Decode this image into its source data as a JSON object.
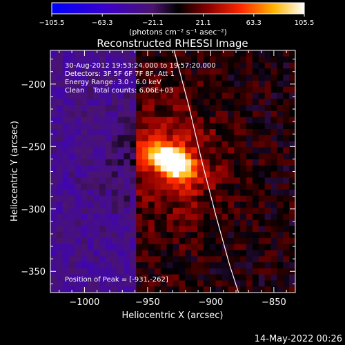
{
  "chart_data": {
    "type": "heatmap",
    "title": "Reconstructed RHESSI Image",
    "xlabel": "Heliocentric X (arcsec)",
    "ylabel": "Heliocentric Y (arcsec)",
    "xlim": [
      -1027,
      -833
    ],
    "ylim": [
      -367,
      -173
    ],
    "x_ticks": [
      -1000,
      -950,
      -900,
      -850
    ],
    "x_tick_labels": [
      "−1000",
      "−950",
      "−900",
      "−850"
    ],
    "y_ticks": [
      -200,
      -250,
      -300,
      -350
    ],
    "y_tick_labels": [
      "−200",
      "−250",
      "−300",
      "−350"
    ],
    "colorbar": {
      "min": -105.5,
      "max": 105.5,
      "ticks": [
        -105.5,
        -63.3,
        -21.1,
        21.1,
        63.3,
        105.5
      ],
      "tick_labels": [
        "−105.5",
        "−63.3",
        "−21.1",
        "21.1",
        "63.3",
        "105.5"
      ],
      "unit_label": "(photons cm⁻² s⁻¹ asec⁻²)"
    },
    "annotations": [
      "30-Aug-2012 19:53:24.000 to 19:57:20.000",
      "Detectors: 3F 5F 6F 7F 8F, Att 1",
      "Energy Range: 3.0 - 6.0 keV",
      "Clean    Total counts: 6.06E+03"
    ],
    "peak_label": "Position of Peak = [-931,-262]",
    "peak": {
      "x": -931,
      "y": -262,
      "value": 105.5
    },
    "limb_curve": [
      {
        "x": -929,
        "y": -173
      },
      {
        "x": -918,
        "y": -215
      },
      {
        "x": -907,
        "y": -262
      },
      {
        "x": -896,
        "y": -305
      },
      {
        "x": -885,
        "y": -345
      },
      {
        "x": -878,
        "y": -367
      }
    ]
  },
  "footer": {
    "timestamp": "14-May-2022 00:26"
  },
  "colors": {
    "background": "#000000",
    "limb": "#ffffff"
  }
}
